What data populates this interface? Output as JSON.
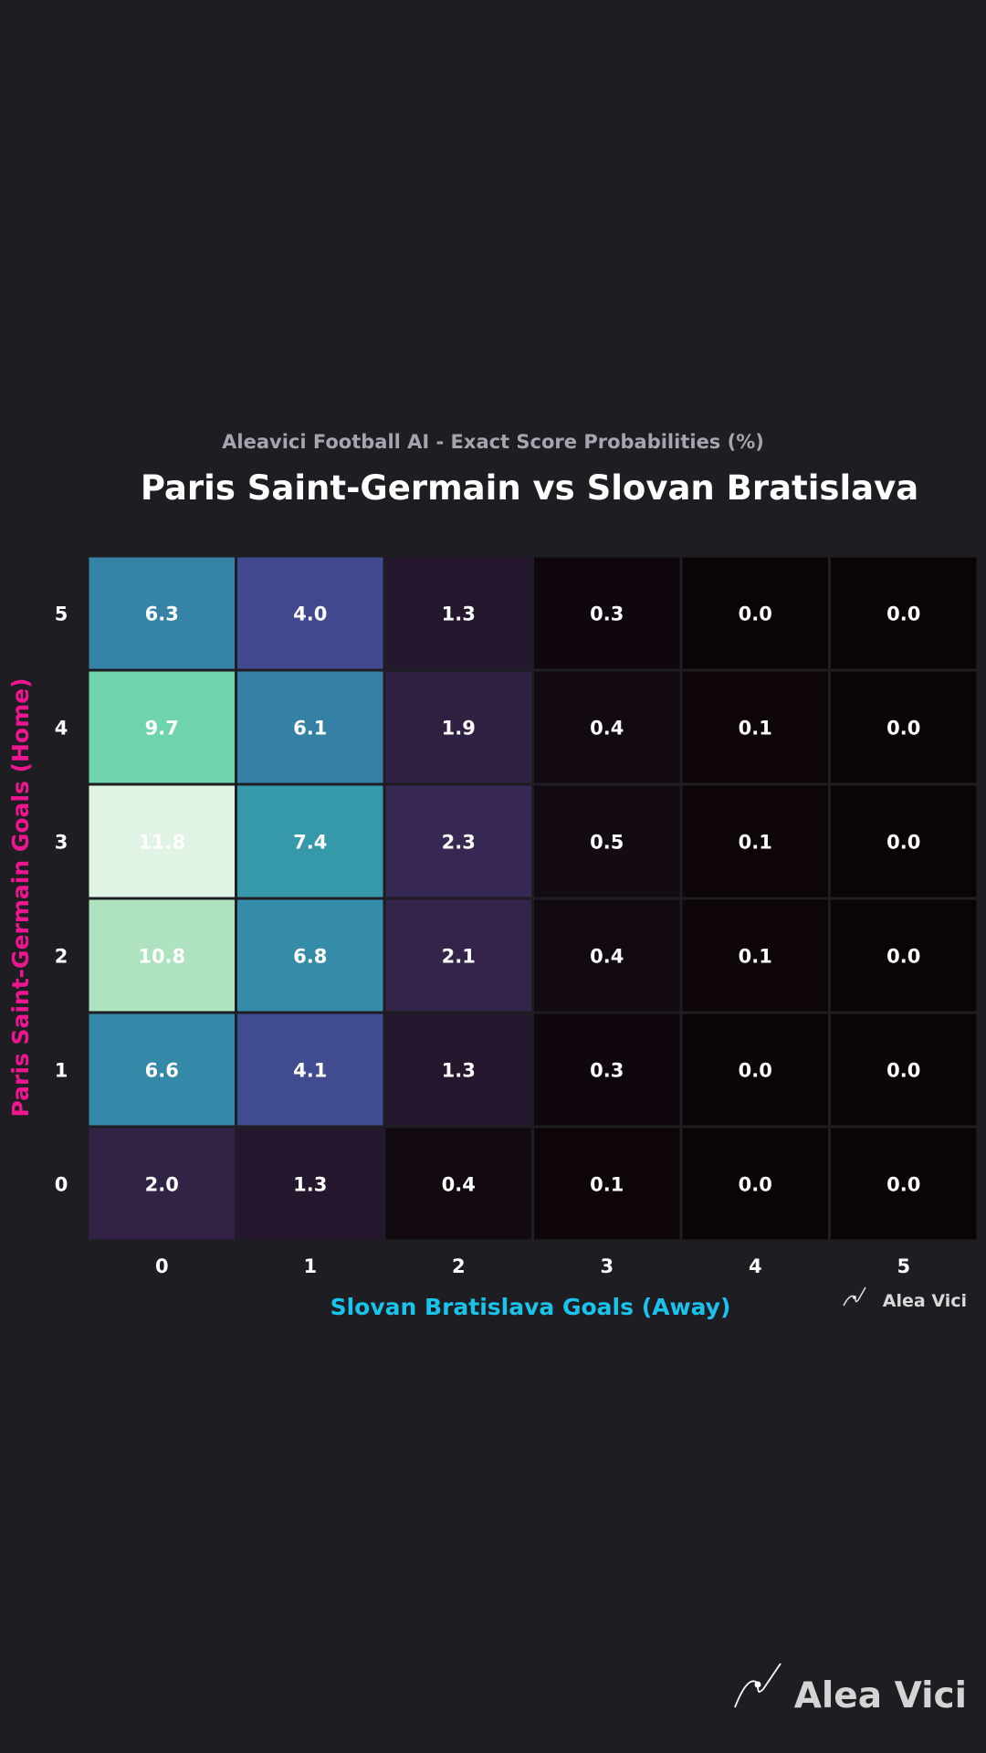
{
  "subtitle": "Aleavici Football AI - Exact Score Probabilities (%)",
  "title": "Paris Saint-Germain vs Slovan Bratislava",
  "watermark_small": "Alea Vici",
  "watermark_big": "Alea Vici",
  "chart_data": {
    "type": "heatmap",
    "xlabel": "Slovan Bratislava Goals (Away)",
    "ylabel": "Paris Saint-Germain Goals (Home)",
    "x_categories": [
      "0",
      "1",
      "2",
      "3",
      "4",
      "5"
    ],
    "y_categories": [
      "5",
      "4",
      "3",
      "2",
      "1",
      "0"
    ],
    "values": [
      [
        6.3,
        4.0,
        1.3,
        0.3,
        0.0,
        0.0
      ],
      [
        9.7,
        6.1,
        1.9,
        0.4,
        0.1,
        0.0
      ],
      [
        11.8,
        7.4,
        2.3,
        0.5,
        0.1,
        0.0
      ],
      [
        10.8,
        6.8,
        2.1,
        0.4,
        0.1,
        0.0
      ],
      [
        6.6,
        4.1,
        1.3,
        0.3,
        0.0,
        0.0
      ],
      [
        2.0,
        1.3,
        0.4,
        0.1,
        0.0,
        0.0
      ]
    ],
    "value_format": "one decimal",
    "colormap": "mako",
    "xlabel_color": "#19c4ec",
    "ylabel_color": "#ef1591"
  }
}
